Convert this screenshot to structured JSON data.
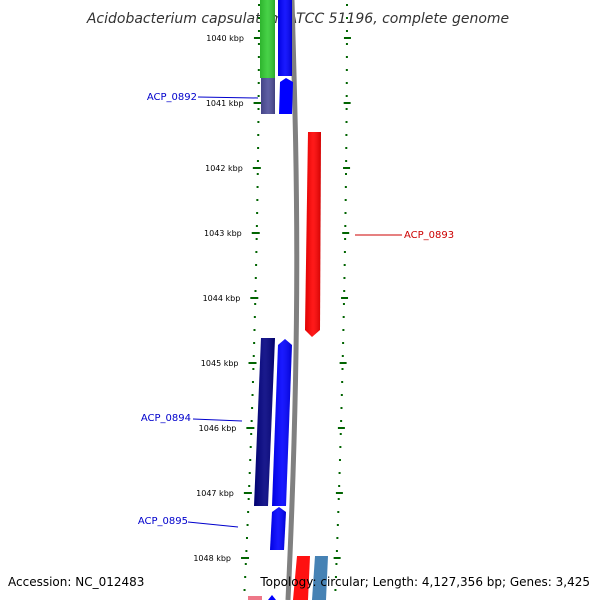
{
  "title": "Acidobacterium capsulatum ATCC 51196, complete genome",
  "footer": {
    "accession": "Accession: NC_012483",
    "topology": "Topology: circular; Length: 4,127,356 bp; Genes: 3,425"
  },
  "colors": {
    "tick": "#006400",
    "backbone": "#808080",
    "label_blue": "#0000cc",
    "label_red": "#cc0000"
  },
  "ticks": [
    "1040 kbp",
    "1041 kbp",
    "1042 kbp",
    "1043 kbp",
    "1044 kbp",
    "1045 kbp",
    "1046 kbp",
    "1047 kbp",
    "1048 kbp"
  ],
  "gene_labels": [
    {
      "name": "ACP_0892",
      "side": "left",
      "color": "#0000cc"
    },
    {
      "name": "ACP_0893",
      "side": "right",
      "color": "#cc0000"
    },
    {
      "name": "ACP_0894",
      "side": "left",
      "color": "#0000cc"
    },
    {
      "name": "ACP_0895",
      "side": "left",
      "color": "#0000cc"
    }
  ]
}
